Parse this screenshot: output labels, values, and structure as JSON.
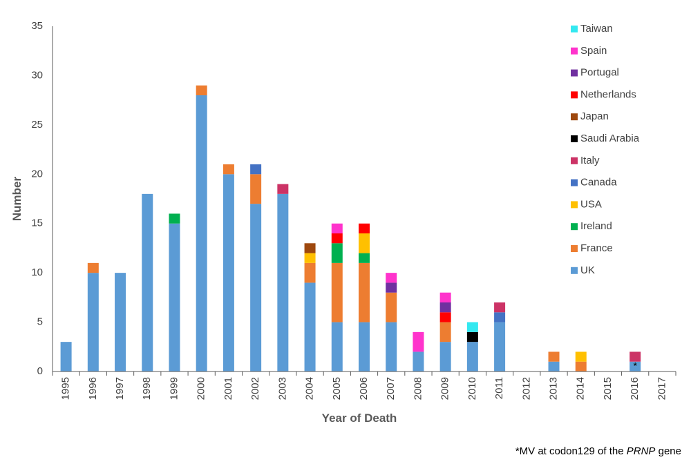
{
  "chart_data": {
    "type": "bar",
    "stacked": true,
    "xlabel": "Year of Death",
    "ylabel": "Number",
    "ylim": [
      0,
      35
    ],
    "yticks": [
      0,
      5,
      10,
      15,
      20,
      25,
      30,
      35
    ],
    "grid": false,
    "legend_position": "top-right",
    "categories": [
      "1995",
      "1996",
      "1997",
      "1998",
      "1999",
      "2000",
      "2001",
      "2002",
      "2003",
      "2004",
      "2005",
      "2006",
      "2007",
      "2008",
      "2009",
      "2010",
      "2011",
      "2012",
      "2013",
      "2014",
      "2015",
      "2016",
      "2017"
    ],
    "series": [
      {
        "name": "UK",
        "color": "#5b9bd5",
        "values": [
          3,
          10,
          10,
          18,
          15,
          28,
          20,
          17,
          18,
          9,
          5,
          5,
          5,
          2,
          3,
          3,
          5,
          0,
          1,
          0,
          0,
          1,
          0
        ]
      },
      {
        "name": "France",
        "color": "#ed7d31",
        "values": [
          0,
          1,
          0,
          0,
          0,
          1,
          1,
          3,
          0,
          2,
          6,
          6,
          3,
          0,
          2,
          0,
          0,
          0,
          1,
          1,
          0,
          0,
          0
        ]
      },
      {
        "name": "Ireland",
        "color": "#00b050",
        "values": [
          0,
          0,
          0,
          0,
          1,
          0,
          0,
          0,
          0,
          0,
          2,
          1,
          0,
          0,
          0,
          0,
          0,
          0,
          0,
          0,
          0,
          0,
          0
        ]
      },
      {
        "name": "USA",
        "color": "#ffc000",
        "values": [
          0,
          0,
          0,
          0,
          0,
          0,
          0,
          0,
          0,
          1,
          0,
          2,
          0,
          0,
          0,
          0,
          0,
          0,
          0,
          1,
          0,
          0,
          0
        ]
      },
      {
        "name": "Canada",
        "color": "#4472c4",
        "values": [
          0,
          0,
          0,
          0,
          0,
          0,
          0,
          1,
          0,
          0,
          0,
          0,
          0,
          0,
          0,
          0,
          1,
          0,
          0,
          0,
          0,
          0,
          0
        ]
      },
      {
        "name": "Italy",
        "color": "#cc3366",
        "values": [
          0,
          0,
          0,
          0,
          0,
          0,
          0,
          0,
          1,
          0,
          0,
          0,
          0,
          0,
          0,
          0,
          1,
          0,
          0,
          0,
          0,
          1,
          0
        ]
      },
      {
        "name": "Saudi Arabia",
        "color": "#000000",
        "values": [
          0,
          0,
          0,
          0,
          0,
          0,
          0,
          0,
          0,
          0,
          0,
          0,
          0,
          0,
          0,
          1,
          0,
          0,
          0,
          0,
          0,
          0,
          0
        ]
      },
      {
        "name": "Japan",
        "color": "#9e480e",
        "values": [
          0,
          0,
          0,
          0,
          0,
          0,
          0,
          0,
          0,
          1,
          0,
          0,
          0,
          0,
          0,
          0,
          0,
          0,
          0,
          0,
          0,
          0,
          0
        ]
      },
      {
        "name": "Netherlands",
        "color": "#ff0000",
        "values": [
          0,
          0,
          0,
          0,
          0,
          0,
          0,
          0,
          0,
          0,
          1,
          1,
          0,
          0,
          1,
          0,
          0,
          0,
          0,
          0,
          0,
          0,
          0
        ]
      },
      {
        "name": "Portugal",
        "color": "#7030a0",
        "values": [
          0,
          0,
          0,
          0,
          0,
          0,
          0,
          0,
          0,
          0,
          0,
          0,
          1,
          0,
          1,
          0,
          0,
          0,
          0,
          0,
          0,
          0,
          0
        ]
      },
      {
        "name": "Spain",
        "color": "#ff33cc",
        "values": [
          0,
          0,
          0,
          0,
          0,
          0,
          0,
          0,
          0,
          0,
          1,
          0,
          1,
          2,
          1,
          0,
          0,
          0,
          0,
          0,
          0,
          0,
          0
        ]
      },
      {
        "name": "Taiwan",
        "color": "#33e8f0",
        "values": [
          0,
          0,
          0,
          0,
          0,
          0,
          0,
          0,
          0,
          0,
          0,
          0,
          0,
          0,
          0,
          1,
          0,
          0,
          0,
          0,
          0,
          0,
          0
        ]
      }
    ],
    "annotations": [
      {
        "text": "*",
        "category": "2016",
        "series": "UK"
      }
    ]
  },
  "footnote": {
    "prefix": "*MV at codon129 of the ",
    "gene": "PRNP",
    "suffix": " gene"
  }
}
